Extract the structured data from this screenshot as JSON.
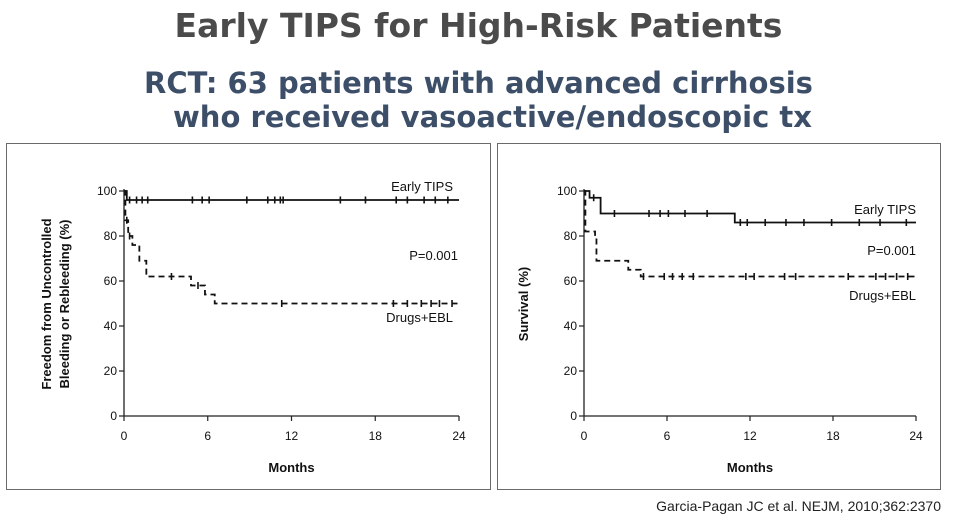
{
  "slide": {
    "title": "Early TIPS for High-Risk Patients",
    "subtitle_line1": "RCT: 63 patients with advanced cirrhosis",
    "subtitle_line2": "who received vasoactive/endoscopic tx",
    "citation": "Garcia-Pagan JC et al. NEJM, 2010;362:2370"
  },
  "chart_data": [
    {
      "type": "line",
      "xlabel": "Months",
      "ylabel_lines": [
        "Freedom from Uncontrolled",
        "Bleeding or Rebleeding (%)"
      ],
      "xlim": [
        0,
        24
      ],
      "ylim": [
        0,
        100
      ],
      "x_ticks": [
        0,
        6,
        12,
        18,
        24
      ],
      "y_ticks": [
        0,
        20,
        40,
        60,
        80,
        100
      ],
      "grid": false,
      "annotation": "P=0.001",
      "series": [
        {
          "name": "Early TIPS",
          "style": "solid",
          "steps": [
            [
              0,
              100
            ],
            [
              0.2,
              96
            ],
            [
              24,
              96
            ]
          ],
          "censor_x": [
            0.4,
            0.9,
            1.3,
            1.7,
            4.9,
            5.6,
            6.1,
            8.8,
            10.3,
            10.8,
            11.2,
            11.4,
            15.5,
            17.3,
            19.5,
            20.3,
            21.5,
            22.3,
            23.2
          ]
        },
        {
          "name": "Drugs+EBL",
          "style": "dashed",
          "steps": [
            [
              0,
              100
            ],
            [
              0.1,
              87
            ],
            [
              0.3,
              80
            ],
            [
              0.6,
              76
            ],
            [
              1.1,
              69
            ],
            [
              1.6,
              62
            ],
            [
              4.8,
              58
            ],
            [
              5.8,
              54
            ],
            [
              6.5,
              50
            ],
            [
              24,
              50
            ]
          ],
          "censor_x": [
            0.2,
            0.4,
            3.4,
            5.3,
            11.3,
            19.3,
            20.3,
            21.3,
            22.0,
            22.6,
            23.5
          ]
        }
      ]
    },
    {
      "type": "line",
      "xlabel": "Months",
      "ylabel_lines": [
        "Survival (%)"
      ],
      "xlim": [
        0,
        24
      ],
      "ylim": [
        0,
        100
      ],
      "x_ticks": [
        0,
        6,
        12,
        18,
        24
      ],
      "y_ticks": [
        0,
        20,
        40,
        60,
        80,
        100
      ],
      "grid": false,
      "annotation": "P=0.001",
      "series": [
        {
          "name": "Early TIPS",
          "style": "solid",
          "steps": [
            [
              0,
              100
            ],
            [
              0.4,
              97
            ],
            [
              1.2,
              90
            ],
            [
              10.9,
              86
            ],
            [
              24,
              86
            ]
          ],
          "censor_x": [
            0.7,
            2.2,
            4.7,
            5.5,
            6.1,
            7.3,
            8.9,
            11.3,
            11.8,
            13.1,
            14.6,
            15.9,
            17.9,
            19.9,
            21.4,
            23.3
          ]
        },
        {
          "name": "Drugs+EBL",
          "style": "dashed",
          "steps": [
            [
              0,
              100
            ],
            [
              0.1,
              82
            ],
            [
              0.8,
              80
            ],
            [
              0.9,
              69
            ],
            [
              3.2,
              65
            ],
            [
              4.1,
              62
            ],
            [
              24,
              62
            ]
          ],
          "censor_x": [
            4.3,
            5.8,
            6.4,
            7.1,
            7.9,
            11.7,
            12.3,
            14.5,
            15.3,
            19.1,
            21.1,
            21.8,
            22.6,
            23.4
          ]
        }
      ]
    }
  ]
}
